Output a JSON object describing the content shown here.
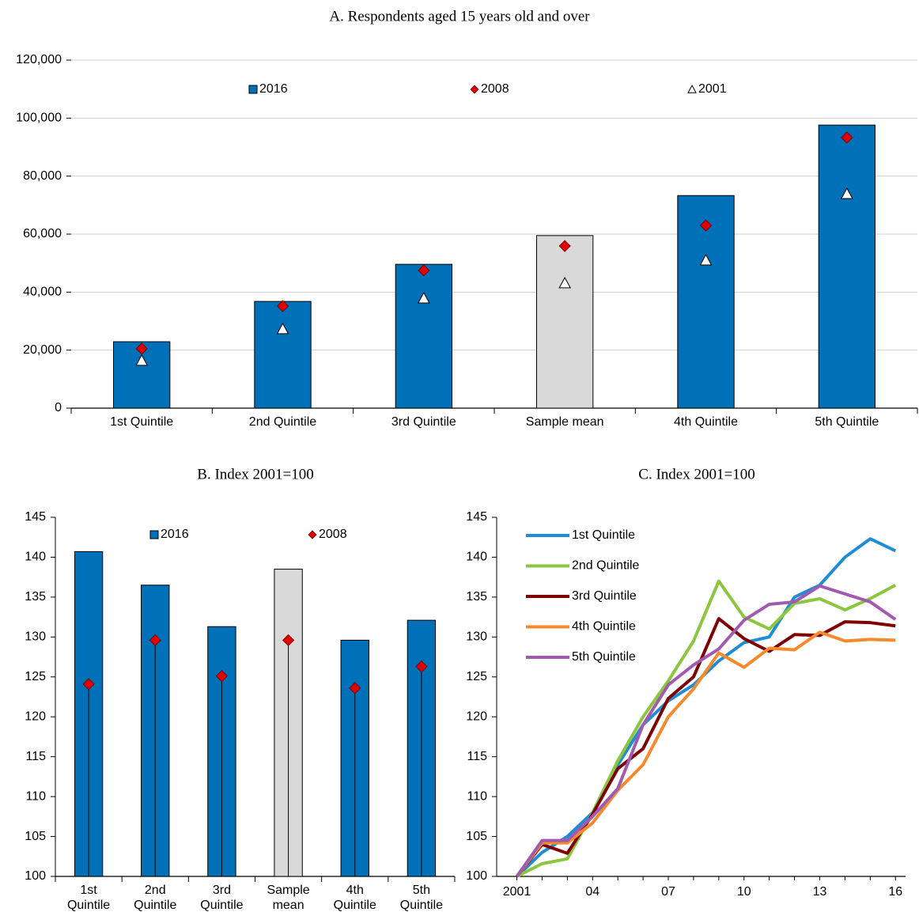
{
  "chart_data": [
    {
      "type": "bar",
      "title": "A. Respondents aged 15 years old and over",
      "categories": [
        "1st Quintile",
        "2nd Quintile",
        "3rd Quintile",
        "Sample mean",
        "4th Quintile",
        "5th Quintile"
      ],
      "series": [
        {
          "name": "2016",
          "kind": "bar",
          "color": "#0070b8",
          "colors": [
            "#0070b8",
            "#0070b8",
            "#0070b8",
            "#d9d9d9",
            "#0070b8",
            "#0070b8"
          ],
          "values": [
            22900,
            36800,
            49600,
            59500,
            73300,
            97600
          ]
        },
        {
          "name": "2008",
          "kind": "diamond",
          "color": "#e00000",
          "values": [
            20500,
            35200,
            47500,
            55900,
            63000,
            93300
          ]
        },
        {
          "name": "2001",
          "kind": "triangle",
          "color": "#ffffff",
          "values": [
            16400,
            27300,
            37900,
            43100,
            51000,
            73900
          ]
        }
      ],
      "ylim": [
        0,
        120000
      ],
      "yticks": [
        0,
        {
          "value": 20000,
          "label": "20,000"
        },
        {
          "value": 40000,
          "label": "40,000"
        },
        {
          "value": 60000,
          "label": "60,000"
        },
        {
          "value": 80000,
          "label": "80,000"
        },
        {
          "value": 100000,
          "label": "100,000"
        },
        {
          "value": 120000,
          "label": "120,000"
        }
      ],
      "grid": true,
      "legend": "top"
    },
    {
      "type": "bar",
      "title": "B. Index 2001=100",
      "categories": [
        "1st Quintile",
        "2nd Quintile",
        "3rd Quintile",
        "Sample mean",
        "4th Quintile",
        "5th Quintile"
      ],
      "series": [
        {
          "name": "2016",
          "kind": "bar",
          "color": "#0070b8",
          "colors": [
            "#0070b8",
            "#0070b8",
            "#0070b8",
            "#d9d9d9",
            "#0070b8",
            "#0070b8"
          ],
          "values": [
            140.7,
            136.5,
            131.3,
            138.5,
            129.6,
            132.1
          ]
        },
        {
          "name": "2008",
          "kind": "diamond",
          "color": "#e00000",
          "drop_lines": true,
          "values": [
            124.1,
            129.6,
            125.1,
            129.6,
            123.6,
            126.3
          ]
        }
      ],
      "ylim": [
        100,
        145
      ],
      "yticks": [
        100,
        105,
        110,
        115,
        120,
        125,
        130,
        135,
        140,
        145
      ],
      "grid": false,
      "legend": "top",
      "wrap_labels": true
    },
    {
      "type": "line",
      "title": "C. Index 2001=100",
      "x": [
        2001,
        2002,
        2003,
        2004,
        2005,
        2006,
        2007,
        2008,
        2009,
        2010,
        2011,
        2012,
        2013,
        2014,
        2015,
        2016
      ],
      "series": [
        {
          "name": "1st Quintile",
          "color": "#1f8dd6",
          "values": [
            100,
            103,
            105,
            108,
            114,
            119,
            122,
            124,
            127,
            129.3,
            130,
            135,
            136.5,
            140,
            142.3,
            140.8
          ]
        },
        {
          "name": "2nd Quintile",
          "color": "#8cc63f",
          "values": [
            100,
            101.6,
            102.2,
            108,
            114.5,
            120,
            124.5,
            129.5,
            137,
            132.5,
            131,
            134.2,
            134.8,
            133.4,
            134.8,
            136.5
          ]
        },
        {
          "name": "3rd Quintile",
          "color": "#7f0000",
          "values": [
            100,
            104,
            102.9,
            107.8,
            113.5,
            116,
            122.3,
            125,
            132.3,
            129.8,
            128.2,
            130.3,
            130.2,
            131.9,
            131.8,
            131.4
          ]
        },
        {
          "name": "4th Quintile",
          "color": "#f7892d",
          "values": [
            100,
            104.2,
            104.2,
            106.7,
            110.8,
            114,
            120,
            123.5,
            128,
            126.2,
            128.6,
            128.4,
            130.6,
            129.5,
            129.7,
            129.6
          ]
        },
        {
          "name": "5th Quintile",
          "color": "#a05bb0",
          "values": [
            100,
            104.5,
            104.5,
            107.5,
            111,
            119,
            124,
            126.5,
            128.5,
            132.1,
            134.1,
            134.4,
            136.4,
            135.4,
            134.4,
            132.2
          ]
        }
      ],
      "xlim": [
        2000.2,
        2016.4
      ],
      "xticks": [
        2001,
        {
          "value": 2004,
          "label": "04"
        },
        {
          "value": 2007,
          "label": "07"
        },
        {
          "value": 2010,
          "label": "10"
        },
        {
          "value": 2013,
          "label": "13"
        },
        {
          "value": 2016,
          "label": "16"
        }
      ],
      "ylim": [
        100,
        145
      ],
      "yticks": [
        100,
        105,
        110,
        115,
        120,
        125,
        130,
        135,
        140,
        145
      ],
      "grid": false,
      "legend": "top-left"
    }
  ]
}
